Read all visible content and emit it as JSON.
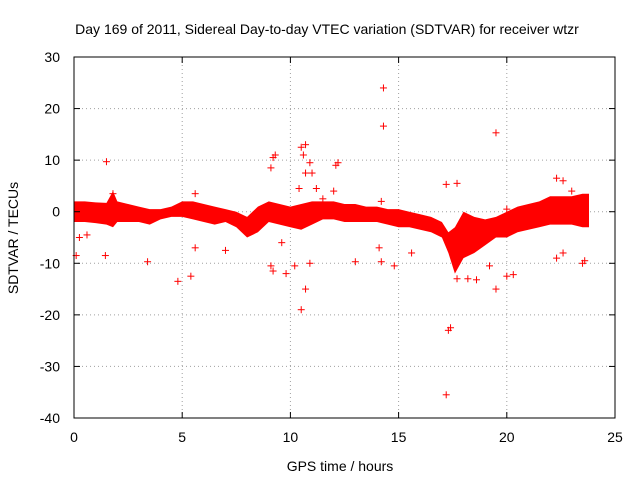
{
  "chart_data": {
    "type": "scatter",
    "title": "Day 169 of 2011, Sidereal Day-to-day VTEC variation (SDTVAR) for receiver wtzr",
    "xlabel": "GPS time / hours",
    "ylabel": "SDTVAR / TECUs",
    "xlim": [
      0,
      25
    ],
    "ylim": [
      -40,
      30
    ],
    "xticks": [
      0,
      5,
      10,
      15,
      20,
      25
    ],
    "yticks": [
      -40,
      -30,
      -20,
      -10,
      0,
      10,
      20,
      30
    ],
    "xtick_labels": [
      "0",
      "5",
      "10",
      "15",
      "20",
      "25"
    ],
    "ytick_labels": [
      "-40",
      "-30",
      "-20",
      "-10",
      "0",
      "10",
      "20",
      "30"
    ],
    "grid": true,
    "marker": "+",
    "color": "#ff0000",
    "dense_band": {
      "x": [
        0,
        0.5,
        1,
        1.5,
        1.8,
        2,
        2.5,
        3,
        3.5,
        4,
        4.5,
        5,
        5.5,
        6,
        6.5,
        7,
        7.5,
        8,
        8.5,
        9,
        9.5,
        10,
        10.5,
        11,
        11.5,
        12,
        12.5,
        13,
        13.5,
        14,
        14.5,
        15,
        15.5,
        16,
        16.5,
        17,
        17.3,
        17.6,
        18,
        18.5,
        19,
        19.5,
        20,
        20.5,
        21,
        21.5,
        22,
        22.5,
        23,
        23.5,
        23.8
      ],
      "upper": [
        2,
        2,
        1.8,
        1.7,
        4,
        2,
        1.5,
        1,
        0.5,
        0.5,
        1,
        2,
        2,
        1.5,
        1,
        0.5,
        0,
        -1,
        1,
        2,
        1.5,
        1,
        1.5,
        2,
        2,
        2,
        1.5,
        1.5,
        1,
        1,
        0.5,
        0.5,
        0,
        -0.5,
        -1,
        -2,
        -4,
        -3,
        0,
        -1,
        -1.5,
        -1,
        0,
        1,
        1.5,
        2,
        3,
        3,
        3,
        3.5,
        3.5
      ],
      "lower": [
        -2,
        -2,
        -2.2,
        -2.5,
        -3,
        -2,
        -2,
        -2,
        -2.5,
        -1.5,
        -1,
        -1,
        -1.5,
        -2,
        -2.5,
        -2,
        -3,
        -5,
        -4,
        -2,
        -2.5,
        -3,
        -3.5,
        -2.5,
        -1.5,
        -1.5,
        -2,
        -2,
        -2,
        -2,
        -2.5,
        -3,
        -3,
        -3.5,
        -4,
        -5,
        -8,
        -12,
        -9,
        -8,
        -6.5,
        -5,
        -5,
        -4,
        -3.5,
        -3,
        -2.5,
        -2.5,
        -2.5,
        -3,
        -3
      ]
    },
    "outliers": [
      {
        "x": 0.1,
        "y": -8.5
      },
      {
        "x": 0.25,
        "y": -5.0
      },
      {
        "x": 0.6,
        "y": -4.5
      },
      {
        "x": 1.5,
        "y": 9.7
      },
      {
        "x": 1.45,
        "y": -8.5
      },
      {
        "x": 1.8,
        "y": 3.5
      },
      {
        "x": 3.4,
        "y": -9.7
      },
      {
        "x": 4.8,
        "y": -13.5
      },
      {
        "x": 5.4,
        "y": -12.5
      },
      {
        "x": 5.6,
        "y": 3.5
      },
      {
        "x": 5.6,
        "y": -7.0
      },
      {
        "x": 7.0,
        "y": -7.5
      },
      {
        "x": 9.1,
        "y": 8.5
      },
      {
        "x": 9.2,
        "y": 10.5
      },
      {
        "x": 9.3,
        "y": 11.0
      },
      {
        "x": 9.1,
        "y": -10.5
      },
      {
        "x": 9.2,
        "y": -11.5
      },
      {
        "x": 9.6,
        "y": -6.0
      },
      {
        "x": 9.8,
        "y": -12.0
      },
      {
        "x": 10.2,
        "y": -10.5
      },
      {
        "x": 10.5,
        "y": -19.0
      },
      {
        "x": 10.5,
        "y": 12.5
      },
      {
        "x": 10.6,
        "y": 11.0
      },
      {
        "x": 10.7,
        "y": 13.0
      },
      {
        "x": 10.7,
        "y": 7.5
      },
      {
        "x": 10.4,
        "y": 4.5
      },
      {
        "x": 10.9,
        "y": 9.5
      },
      {
        "x": 11.0,
        "y": 7.5
      },
      {
        "x": 10.9,
        "y": -10.0
      },
      {
        "x": 10.7,
        "y": -15.0
      },
      {
        "x": 11.2,
        "y": 4.5
      },
      {
        "x": 11.5,
        "y": 2.5
      },
      {
        "x": 12.0,
        "y": 4.0
      },
      {
        "x": 12.1,
        "y": 9.0
      },
      {
        "x": 12.2,
        "y": 9.5
      },
      {
        "x": 13.0,
        "y": -9.7
      },
      {
        "x": 14.3,
        "y": 24.0
      },
      {
        "x": 14.3,
        "y": 16.6
      },
      {
        "x": 14.2,
        "y": 2.0
      },
      {
        "x": 14.1,
        "y": -7.0
      },
      {
        "x": 14.2,
        "y": -9.7
      },
      {
        "x": 14.8,
        "y": -10.5
      },
      {
        "x": 15.6,
        "y": -8.0
      },
      {
        "x": 17.2,
        "y": 5.3
      },
      {
        "x": 17.2,
        "y": -35.5
      },
      {
        "x": 17.3,
        "y": -23.0
      },
      {
        "x": 17.4,
        "y": -22.5
      },
      {
        "x": 17.7,
        "y": -13.0
      },
      {
        "x": 17.7,
        "y": 5.5
      },
      {
        "x": 18.2,
        "y": -13.0
      },
      {
        "x": 18.6,
        "y": -13.2
      },
      {
        "x": 19.2,
        "y": -10.5
      },
      {
        "x": 19.5,
        "y": 15.3
      },
      {
        "x": 19.5,
        "y": -15.0
      },
      {
        "x": 20.0,
        "y": -12.5
      },
      {
        "x": 20.3,
        "y": -12.2
      },
      {
        "x": 20.0,
        "y": 0.5
      },
      {
        "x": 22.3,
        "y": 6.5
      },
      {
        "x": 22.6,
        "y": 6.0
      },
      {
        "x": 22.6,
        "y": -8.0
      },
      {
        "x": 22.3,
        "y": -9.0
      },
      {
        "x": 23.0,
        "y": 4.0
      },
      {
        "x": 23.5,
        "y": -10.0
      },
      {
        "x": 23.6,
        "y": -9.5
      }
    ]
  }
}
